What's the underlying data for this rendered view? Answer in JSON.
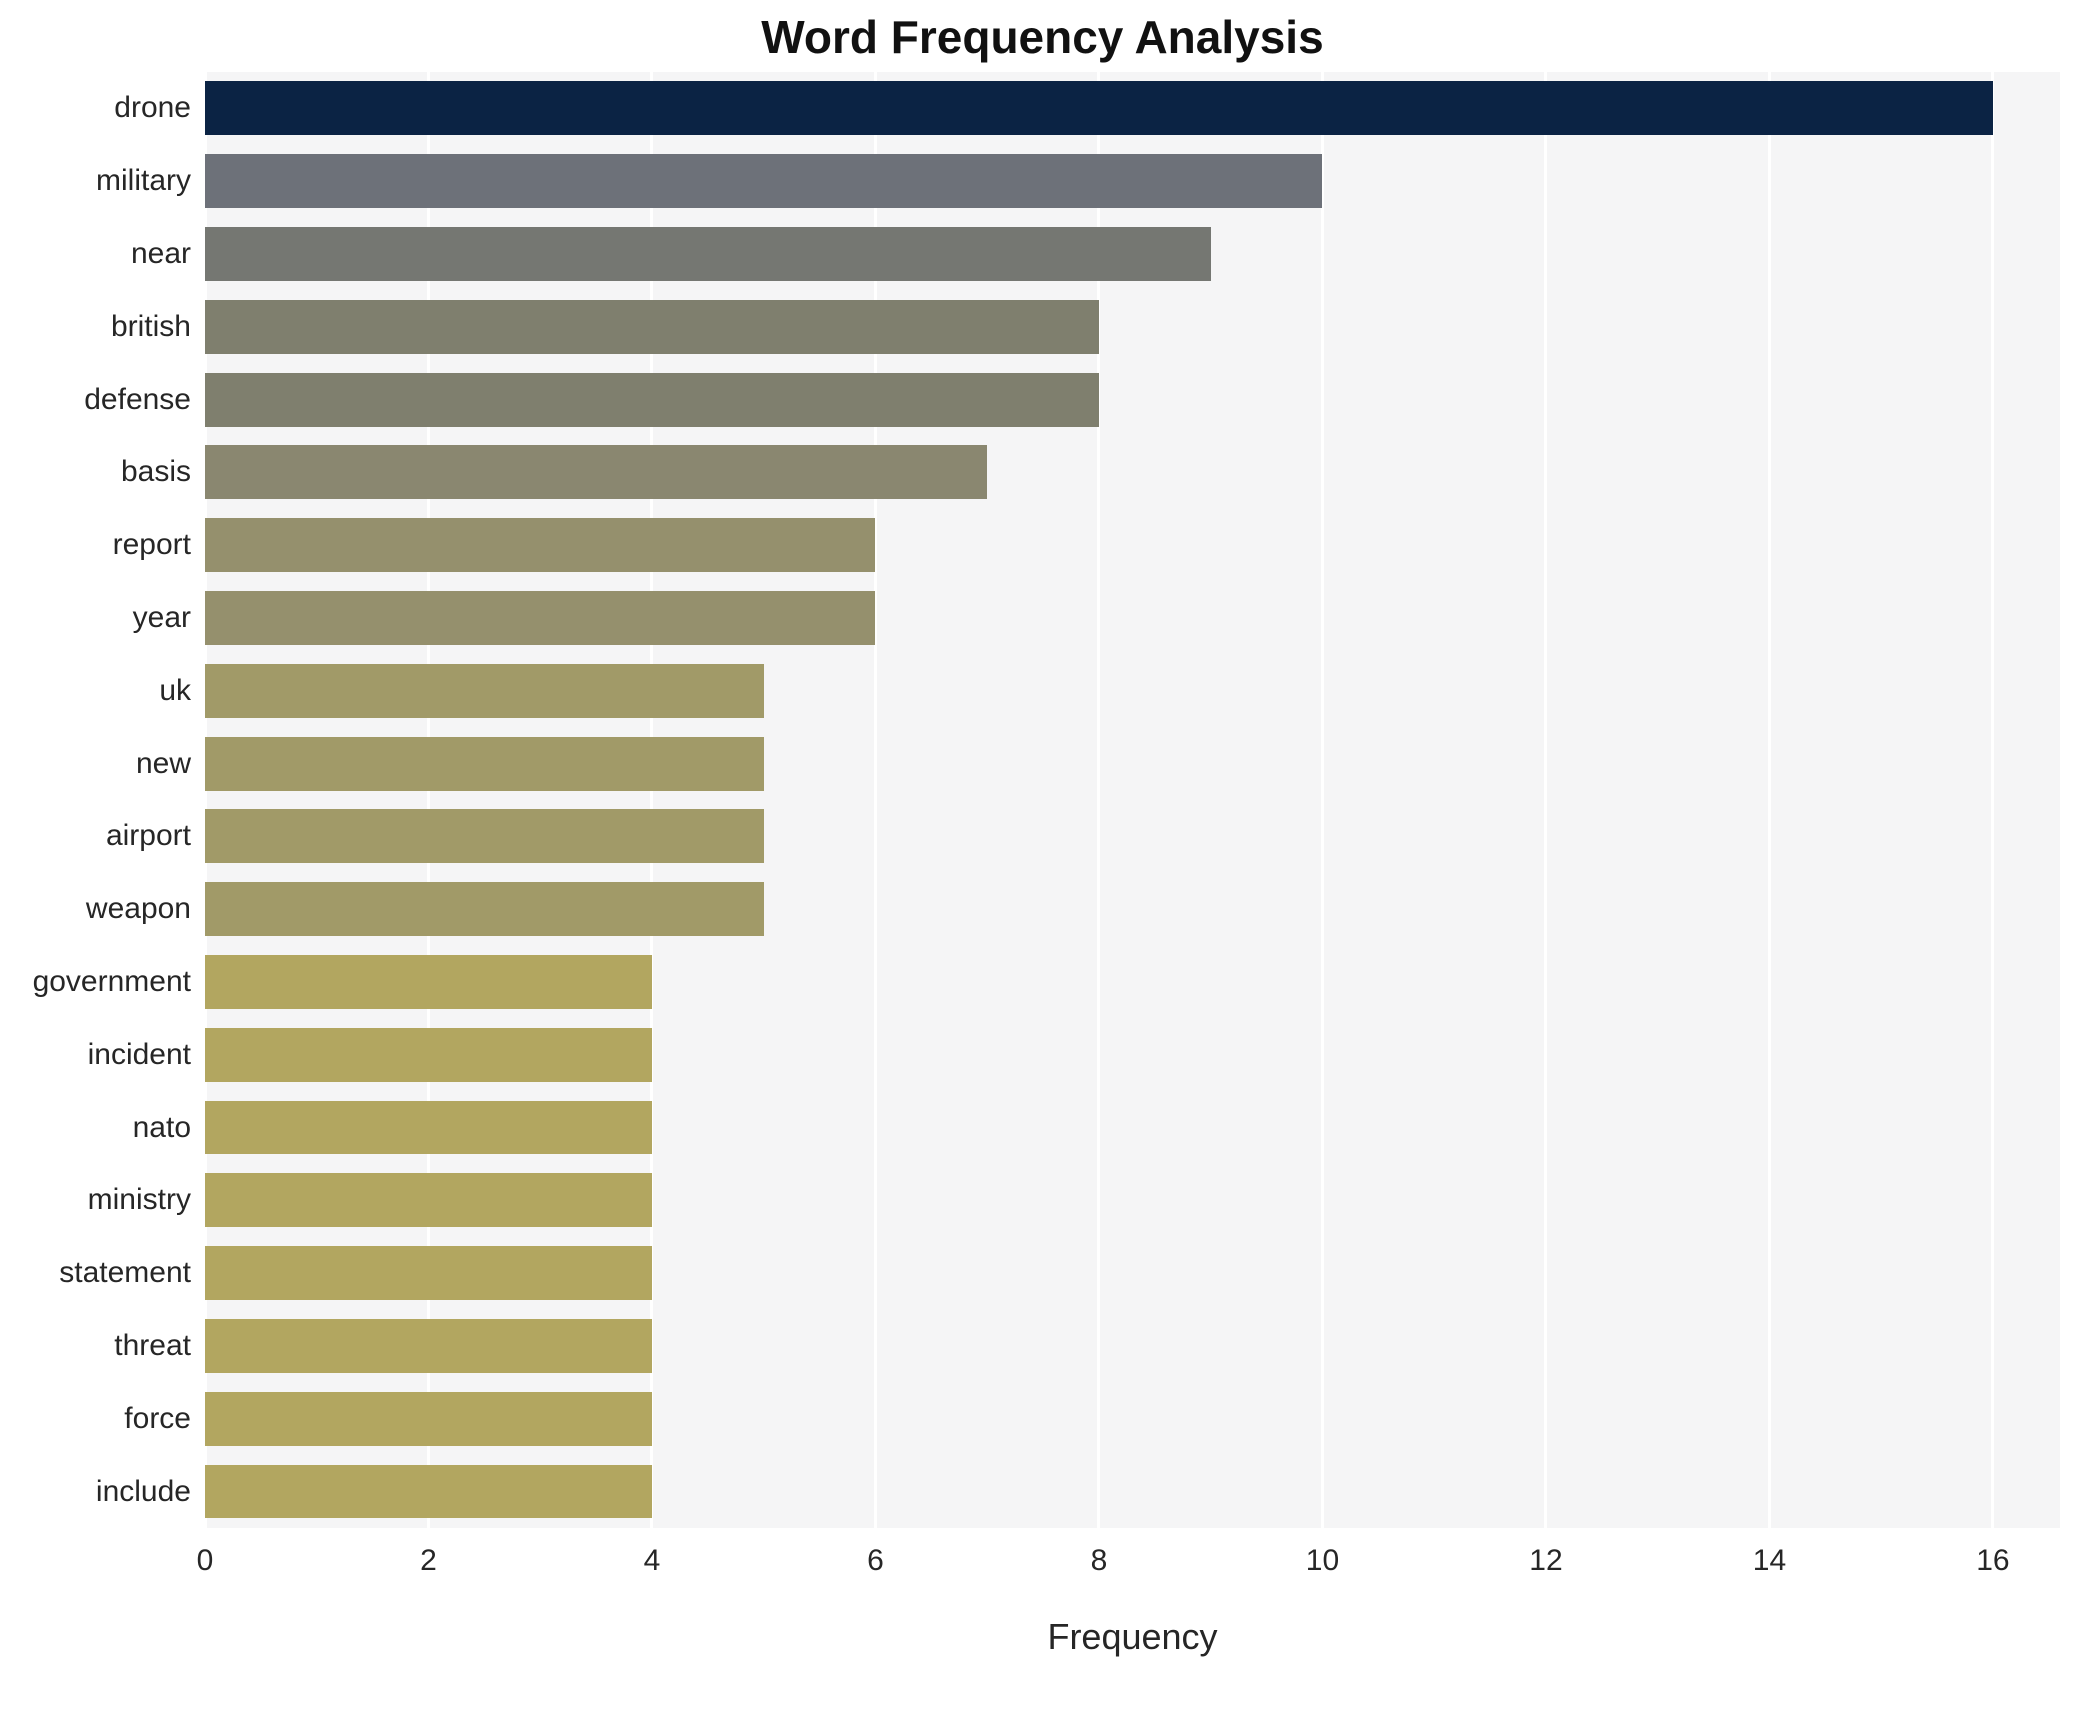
{
  "title": "Word Frequency Analysis",
  "chart_data": {
    "type": "bar",
    "orientation": "horizontal",
    "title": "Word Frequency Analysis",
    "xlabel": "Frequency",
    "ylabel": "",
    "xlim": [
      0,
      16.6
    ],
    "xticks": [
      0,
      2,
      4,
      6,
      8,
      10,
      12,
      14,
      16
    ],
    "grid": true,
    "legend": false,
    "plot_background": "#f5f5f6",
    "grid_color": "#ffffff",
    "categories": [
      "drone",
      "military",
      "near",
      "british",
      "defense",
      "basis",
      "report",
      "year",
      "uk",
      "new",
      "airport",
      "weapon",
      "government",
      "incident",
      "nato",
      "ministry",
      "statement",
      "threat",
      "force",
      "include"
    ],
    "values": [
      16,
      10,
      9,
      8,
      8,
      7,
      6,
      6,
      5,
      5,
      5,
      5,
      4,
      4,
      4,
      4,
      4,
      4,
      4,
      4
    ],
    "bar_colors": [
      "#0b2344",
      "#6d7179",
      "#757772",
      "#7f7f6e",
      "#7f7f6e",
      "#8a8770",
      "#95906d",
      "#95906d",
      "#a19a68",
      "#a19a68",
      "#a19a68",
      "#a19a68",
      "#b2a660",
      "#b2a660",
      "#b2a660",
      "#b2a660",
      "#b2a660",
      "#b2a660",
      "#b2a660",
      "#b2a660"
    ]
  }
}
